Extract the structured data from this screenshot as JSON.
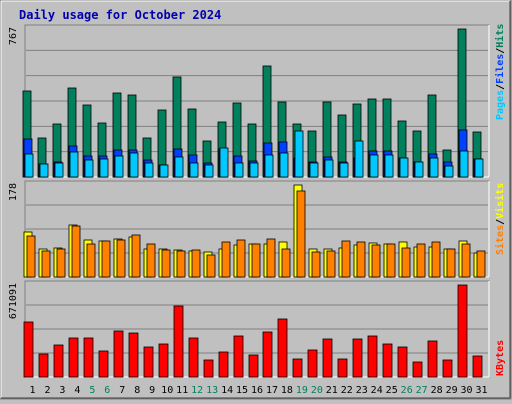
{
  "title": "Daily usage for October 2024",
  "colors": {
    "background": "#c0c0c0",
    "title": "#0000b0",
    "grid": "#808080",
    "hits": "#00805c",
    "files": "#0040ff",
    "pages": "#00c8ff",
    "visits": "#ffff00",
    "sites": "#ff8000",
    "kbytes": "#ff0000",
    "weekend_day": "#00805c",
    "weekday": "#000000",
    "separator": "#000000"
  },
  "chart_data": [
    {
      "type": "bar",
      "panel": "hits-files-pages",
      "ymax_label": "767",
      "ymax": 767,
      "legend": [
        {
          "label": "Pages",
          "color_key": "pages"
        },
        {
          "label": "Files",
          "color_key": "files"
        },
        {
          "label": "Hits",
          "color_key": "hits"
        }
      ],
      "legend_separator": "/",
      "categories": [
        "1",
        "2",
        "3",
        "4",
        "5",
        "6",
        "7",
        "8",
        "9",
        "10",
        "11",
        "12",
        "13",
        "14",
        "15",
        "16",
        "17",
        "18",
        "19",
        "20",
        "21",
        "22",
        "23",
        "24",
        "25",
        "26",
        "27",
        "28",
        "29",
        "30",
        "31"
      ],
      "series": [
        {
          "name": "Hits",
          "values": [
            445,
            200,
            275,
            460,
            375,
            280,
            435,
            425,
            200,
            345,
            520,
            350,
            185,
            285,
            385,
            275,
            575,
            390,
            275,
            240,
            390,
            320,
            380,
            405,
            405,
            290,
            240,
            425,
            140,
            767,
            235
          ]
        },
        {
          "name": "Files",
          "values": [
            195,
            65,
            80,
            160,
            110,
            110,
            140,
            140,
            90,
            60,
            145,
            115,
            70,
            145,
            110,
            85,
            175,
            180,
            100,
            80,
            105,
            80,
            100,
            135,
            135,
            100,
            80,
            120,
            80,
            245,
            95
          ]
        },
        {
          "name": "Pages",
          "values": [
            120,
            65,
            70,
            130,
            90,
            95,
            110,
            125,
            70,
            60,
            105,
            75,
            60,
            150,
            70,
            70,
            115,
            125,
            240,
            70,
            90,
            70,
            185,
            115,
            115,
            100,
            80,
            100,
            55,
            135,
            95
          ]
        }
      ],
      "grid": true
    },
    {
      "type": "bar",
      "panel": "visits-sites",
      "ymax_label": "178",
      "ymax": 178,
      "legend": [
        {
          "label": "Sites",
          "color_key": "sites"
        },
        {
          "label": "Visits",
          "color_key": "visits"
        }
      ],
      "legend_separator": "/",
      "categories": [
        "1",
        "2",
        "3",
        "4",
        "5",
        "6",
        "7",
        "8",
        "9",
        "10",
        "11",
        "12",
        "13",
        "14",
        "15",
        "16",
        "17",
        "18",
        "19",
        "20",
        "21",
        "22",
        "23",
        "24",
        "25",
        "26",
        "27",
        "28",
        "29",
        "30",
        "31"
      ],
      "series": [
        {
          "name": "Visits",
          "values": [
            87,
            54,
            56,
            101,
            71,
            69,
            74,
            78,
            54,
            55,
            52,
            51,
            49,
            54,
            61,
            64,
            64,
            67,
            178,
            55,
            54,
            57,
            61,
            65,
            64,
            67,
            59,
            59,
            54,
            70,
            46
          ]
        },
        {
          "name": "Sites",
          "values": [
            79,
            51,
            55,
            99,
            63,
            69,
            71,
            81,
            63,
            52,
            51,
            53,
            42,
            68,
            71,
            63,
            73,
            55,
            166,
            48,
            51,
            70,
            67,
            61,
            63,
            56,
            64,
            67,
            55,
            63,
            50
          ]
        }
      ],
      "grid": true
    },
    {
      "type": "bar",
      "panel": "kbytes",
      "ymax_label": "671091",
      "ymax": 671091,
      "legend": [
        {
          "label": "KBytes",
          "color_key": "kbytes"
        }
      ],
      "categories": [
        "1",
        "2",
        "3",
        "4",
        "5",
        "6",
        "7",
        "8",
        "9",
        "10",
        "11",
        "12",
        "13",
        "14",
        "15",
        "16",
        "17",
        "18",
        "19",
        "20",
        "21",
        "22",
        "23",
        "24",
        "25",
        "26",
        "27",
        "28",
        "29",
        "30",
        "31"
      ],
      "series": [
        {
          "name": "KBytes",
          "values": [
            400000,
            165000,
            230000,
            288000,
            288000,
            193000,
            339000,
            323000,
            220000,
            238000,
            516000,
            288000,
            125000,
            182000,
            299000,
            163000,
            327000,
            424000,
            130000,
            196000,
            277000,
            130000,
            280000,
            299000,
            244000,
            220000,
            110000,
            265000,
            125000,
            671091,
            152000
          ]
        }
      ],
      "weekend_days": [
        5,
        6,
        12,
        13,
        19,
        20,
        26,
        27
      ],
      "grid": true
    }
  ]
}
